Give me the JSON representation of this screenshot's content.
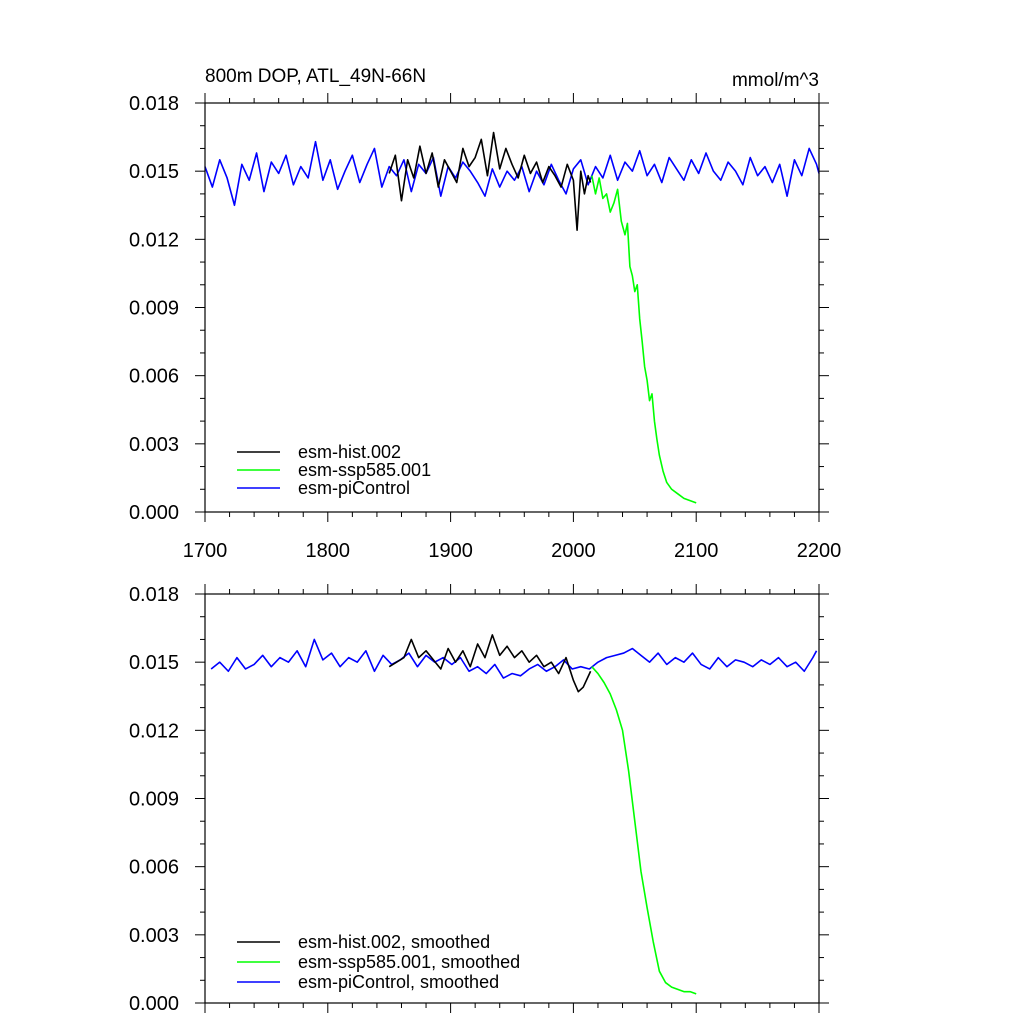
{
  "chart_data": [
    {
      "type": "line",
      "panel": "top",
      "title_left": "800m DOP, ATL_49N-66N",
      "title_right": "mmol/m^3",
      "xlim": [
        1700,
        2200
      ],
      "ylim": [
        0.0,
        0.018
      ],
      "xticks": [
        1700,
        1800,
        1900,
        2000,
        2100,
        2200
      ],
      "xtick_labels": [
        "1700",
        "1800",
        "1900",
        "2000",
        "2100",
        "2200"
      ],
      "yticks": [
        0.0,
        0.003,
        0.006,
        0.009,
        0.012,
        0.015,
        0.018
      ],
      "ytick_labels": [
        "0.000",
        "0.003",
        "0.006",
        "0.009",
        "0.012",
        "0.015",
        "0.018"
      ],
      "legend_location": "lower-left",
      "series": [
        {
          "name": "esm-piControl",
          "legend": "esm-piControl",
          "color": "#0000ff",
          "x": [
            1700,
            1706,
            1712,
            1718,
            1724,
            1730,
            1736,
            1742,
            1748,
            1754,
            1760,
            1766,
            1772,
            1778,
            1784,
            1790,
            1796,
            1802,
            1808,
            1814,
            1820,
            1826,
            1832,
            1838,
            1844,
            1850,
            1856,
            1862,
            1868,
            1874,
            1880,
            1886,
            1892,
            1898,
            1904,
            1910,
            1916,
            1922,
            1928,
            1934,
            1940,
            1946,
            1952,
            1958,
            1964,
            1970,
            1976,
            1982,
            1988,
            1994,
            2000,
            2006,
            2012,
            2018,
            2024,
            2030,
            2036,
            2042,
            2048,
            2054,
            2060,
            2066,
            2072,
            2078,
            2084,
            2090,
            2096,
            2102,
            2108,
            2114,
            2120,
            2126,
            2132,
            2138,
            2144,
            2150,
            2156,
            2162,
            2168,
            2174,
            2180,
            2186,
            2192,
            2198,
            2200
          ],
          "values": [
            0.0152,
            0.0143,
            0.0155,
            0.0147,
            0.0135,
            0.0153,
            0.0146,
            0.0158,
            0.0141,
            0.0154,
            0.0149,
            0.0157,
            0.0144,
            0.0152,
            0.0147,
            0.0163,
            0.0146,
            0.0155,
            0.0142,
            0.015,
            0.0157,
            0.0145,
            0.0153,
            0.016,
            0.0143,
            0.0152,
            0.0148,
            0.0155,
            0.0141,
            0.0153,
            0.0149,
            0.0156,
            0.0139,
            0.0152,
            0.0147,
            0.0154,
            0.015,
            0.0145,
            0.0139,
            0.0151,
            0.0143,
            0.015,
            0.0146,
            0.0152,
            0.0141,
            0.015,
            0.0144,
            0.0153,
            0.0146,
            0.014,
            0.0151,
            0.0155,
            0.0144,
            0.0152,
            0.0147,
            0.0157,
            0.0146,
            0.0154,
            0.015,
            0.0159,
            0.0148,
            0.0153,
            0.0145,
            0.0156,
            0.0151,
            0.0146,
            0.0155,
            0.0149,
            0.0158,
            0.015,
            0.0146,
            0.0154,
            0.015,
            0.0144,
            0.0156,
            0.0148,
            0.0152,
            0.0145,
            0.0153,
            0.0139,
            0.0155,
            0.0148,
            0.016,
            0.0153,
            0.0149
          ]
        },
        {
          "name": "esm-hist.002",
          "legend": "esm-hist.002",
          "color": "#000000",
          "x": [
            1850,
            1855,
            1860,
            1865,
            1870,
            1875,
            1880,
            1885,
            1890,
            1895,
            1900,
            1905,
            1910,
            1915,
            1920,
            1925,
            1930,
            1935,
            1940,
            1945,
            1950,
            1955,
            1960,
            1965,
            1970,
            1975,
            1980,
            1985,
            1990,
            1995,
            2000,
            2003,
            2006,
            2009,
            2012,
            2014
          ],
          "values": [
            0.0149,
            0.0157,
            0.0137,
            0.0155,
            0.0147,
            0.0161,
            0.0149,
            0.0158,
            0.0143,
            0.0155,
            0.015,
            0.0145,
            0.016,
            0.0152,
            0.0156,
            0.0164,
            0.0148,
            0.0167,
            0.0151,
            0.016,
            0.0153,
            0.0147,
            0.0157,
            0.0149,
            0.0154,
            0.0145,
            0.0152,
            0.0148,
            0.0143,
            0.0153,
            0.0146,
            0.0124,
            0.015,
            0.014,
            0.0148,
            0.0145
          ]
        },
        {
          "name": "esm-ssp585.001",
          "legend": "esm-ssp585.001",
          "color": "#00ff00",
          "x": [
            2015,
            2018,
            2021,
            2024,
            2027,
            2030,
            2033,
            2036,
            2039,
            2042,
            2044,
            2046,
            2048,
            2050,
            2052,
            2054,
            2056,
            2058,
            2060,
            2062,
            2064,
            2066,
            2068,
            2070,
            2073,
            2076,
            2080,
            2085,
            2090,
            2095,
            2100
          ],
          "values": [
            0.0148,
            0.014,
            0.0147,
            0.0138,
            0.014,
            0.0132,
            0.0136,
            0.0142,
            0.0128,
            0.0122,
            0.0127,
            0.0108,
            0.0104,
            0.0097,
            0.01,
            0.0085,
            0.0075,
            0.0064,
            0.0058,
            0.0049,
            0.0052,
            0.004,
            0.0032,
            0.0025,
            0.0018,
            0.0013,
            0.001,
            0.0008,
            0.0006,
            0.0005,
            0.0004
          ]
        }
      ]
    },
    {
      "type": "line",
      "panel": "bottom",
      "xlim": [
        1700,
        2200
      ],
      "ylim": [
        0.0,
        0.018
      ],
      "xticks": [
        1700,
        1800,
        1900,
        2000,
        2100,
        2200
      ],
      "yticks": [
        0.0,
        0.003,
        0.006,
        0.009,
        0.012,
        0.015,
        0.018
      ],
      "ytick_labels": [
        "0.000",
        "0.003",
        "0.006",
        "0.009",
        "0.012",
        "0.015",
        "0.018"
      ],
      "legend_location": "lower-left",
      "series": [
        {
          "name": "esm-piControl",
          "legend": "esm-piControl, smoothed",
          "color": "#0000ff",
          "x": [
            1705,
            1712,
            1719,
            1726,
            1733,
            1740,
            1747,
            1754,
            1761,
            1768,
            1775,
            1782,
            1789,
            1796,
            1803,
            1810,
            1817,
            1824,
            1831,
            1838,
            1845,
            1852,
            1859,
            1866,
            1873,
            1880,
            1887,
            1894,
            1901,
            1908,
            1915,
            1922,
            1929,
            1936,
            1943,
            1950,
            1957,
            1964,
            1971,
            1978,
            1985,
            1992,
            1999,
            2006,
            2013,
            2020,
            2027,
            2034,
            2041,
            2048,
            2055,
            2062,
            2069,
            2076,
            2083,
            2090,
            2097,
            2104,
            2111,
            2118,
            2125,
            2132,
            2139,
            2146,
            2153,
            2160,
            2167,
            2174,
            2181,
            2188,
            2195,
            2198
          ],
          "values": [
            0.0147,
            0.015,
            0.0146,
            0.0152,
            0.0147,
            0.0149,
            0.0153,
            0.0148,
            0.0152,
            0.015,
            0.0155,
            0.0148,
            0.016,
            0.0151,
            0.0154,
            0.0148,
            0.0152,
            0.015,
            0.0155,
            0.0146,
            0.0153,
            0.0149,
            0.0151,
            0.0154,
            0.0148,
            0.0153,
            0.015,
            0.0152,
            0.0149,
            0.0152,
            0.0146,
            0.0148,
            0.0145,
            0.0149,
            0.0143,
            0.0145,
            0.0144,
            0.0147,
            0.0149,
            0.0146,
            0.0148,
            0.0151,
            0.0147,
            0.0148,
            0.0147,
            0.015,
            0.0152,
            0.0153,
            0.0154,
            0.0156,
            0.0153,
            0.015,
            0.0154,
            0.0149,
            0.0152,
            0.015,
            0.0154,
            0.0149,
            0.0147,
            0.0152,
            0.0148,
            0.0151,
            0.015,
            0.0148,
            0.0151,
            0.0149,
            0.0152,
            0.0148,
            0.015,
            0.0146,
            0.0152,
            0.0155
          ]
        },
        {
          "name": "esm-hist.002",
          "legend": "esm-hist.002, smoothed",
          "color": "#000000",
          "x": [
            1850,
            1856,
            1862,
            1868,
            1874,
            1880,
            1886,
            1892,
            1898,
            1904,
            1910,
            1916,
            1922,
            1928,
            1934,
            1940,
            1946,
            1952,
            1958,
            1964,
            1970,
            1976,
            1982,
            1988,
            1994,
            2000,
            2004,
            2008,
            2014
          ],
          "values": [
            0.0148,
            0.015,
            0.0152,
            0.016,
            0.0152,
            0.0155,
            0.0151,
            0.0147,
            0.0156,
            0.015,
            0.0155,
            0.0148,
            0.0158,
            0.0152,
            0.0162,
            0.0153,
            0.0157,
            0.0152,
            0.0155,
            0.015,
            0.0153,
            0.0148,
            0.015,
            0.0145,
            0.0152,
            0.0142,
            0.0137,
            0.0139,
            0.0146
          ]
        },
        {
          "name": "esm-ssp585.001",
          "legend": "esm-ssp585.001, smoothed",
          "color": "#00ff00",
          "x": [
            2015,
            2020,
            2025,
            2030,
            2035,
            2040,
            2045,
            2050,
            2055,
            2060,
            2065,
            2070,
            2075,
            2080,
            2085,
            2090,
            2095,
            2100
          ],
          "values": [
            0.0148,
            0.0145,
            0.0141,
            0.0136,
            0.0129,
            0.012,
            0.0102,
            0.008,
            0.0058,
            0.0042,
            0.0027,
            0.0014,
            0.0009,
            0.0007,
            0.0006,
            0.0005,
            0.0005,
            0.0004
          ]
        }
      ]
    }
  ]
}
